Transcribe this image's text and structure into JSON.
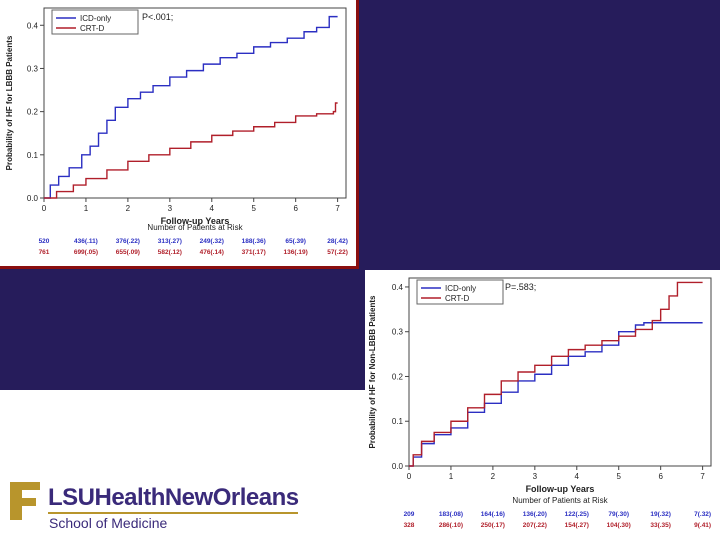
{
  "colors": {
    "icd": "#2b2fc2",
    "crt": "#b01f2a",
    "bg": "#261c5b",
    "gold": "#b8952c"
  },
  "chart_data": [
    {
      "type": "line",
      "title": "P<.001;",
      "xlabel": "Follow-up Years",
      "ylabel": "Probability of HF for LBBB Patients",
      "xlim": [
        0,
        7.2
      ],
      "ylim": [
        0,
        0.44
      ],
      "xticks": [
        "0",
        "1",
        "2",
        "3",
        "4",
        "5",
        "6",
        "7"
      ],
      "yticks": [
        "0.0",
        "0.1",
        "0.2",
        "0.3",
        "0.4"
      ],
      "legend": [
        "ICD-only",
        "CRT-D"
      ],
      "series": [
        {
          "name": "ICD-only",
          "x": [
            0,
            0.15,
            0.35,
            0.6,
            0.9,
            1.1,
            1.3,
            1.5,
            1.7,
            2.0,
            2.3,
            2.6,
            3.0,
            3.4,
            3.8,
            4.2,
            4.6,
            5.0,
            5.4,
            5.8,
            6.2,
            6.5,
            6.8,
            6.95,
            7.0
          ],
          "y": [
            0,
            0.03,
            0.05,
            0.07,
            0.1,
            0.12,
            0.15,
            0.18,
            0.21,
            0.23,
            0.245,
            0.26,
            0.28,
            0.295,
            0.31,
            0.325,
            0.335,
            0.35,
            0.36,
            0.37,
            0.385,
            0.395,
            0.42,
            0.42,
            0.42
          ]
        },
        {
          "name": "CRT-D",
          "x": [
            0,
            0.3,
            0.7,
            1.0,
            1.5,
            2.0,
            2.5,
            3.0,
            3.5,
            4.0,
            4.5,
            5.0,
            5.5,
            6.0,
            6.5,
            6.9,
            6.95,
            7.0
          ],
          "y": [
            0,
            0.015,
            0.03,
            0.045,
            0.065,
            0.085,
            0.1,
            0.115,
            0.13,
            0.145,
            0.155,
            0.165,
            0.175,
            0.19,
            0.195,
            0.2,
            0.22,
            0.22
          ]
        }
      ],
      "at_risk": {
        "title": "Number of Patients at Risk",
        "rows": [
          {
            "name": "ICD-only",
            "values": [
              "520",
              "436(.11)",
              "376(.22)",
              "313(.27)",
              "249(.32)",
              "188(.36)",
              "65(.39)",
              "28(.42)"
            ]
          },
          {
            "name": "CRT-D",
            "values": [
              "761",
              "699(.05)",
              "655(.09)",
              "582(.12)",
              "476(.14)",
              "371(.17)",
              "136(.19)",
              "57(.22)"
            ]
          }
        ]
      }
    },
    {
      "type": "line",
      "title": "P=.583;",
      "xlabel": "Follow-up Years",
      "ylabel": "Probability of HF for Non-LBBB Patients",
      "xlim": [
        0,
        7.2
      ],
      "ylim": [
        0,
        0.42
      ],
      "xticks": [
        "0",
        "1",
        "2",
        "3",
        "4",
        "5",
        "6",
        "7"
      ],
      "yticks": [
        "0.0",
        "0.1",
        "0.2",
        "0.3",
        "0.4"
      ],
      "legend": [
        "ICD-only",
        "CRT-D"
      ],
      "series": [
        {
          "name": "ICD-only",
          "x": [
            0,
            0.1,
            0.3,
            0.6,
            1.0,
            1.4,
            1.8,
            2.2,
            2.6,
            3.0,
            3.4,
            3.8,
            4.2,
            4.6,
            5.0,
            5.4,
            5.6,
            6.0,
            6.5,
            7.0
          ],
          "y": [
            0,
            0.02,
            0.05,
            0.07,
            0.085,
            0.12,
            0.14,
            0.165,
            0.19,
            0.205,
            0.225,
            0.245,
            0.255,
            0.27,
            0.3,
            0.315,
            0.32,
            0.32,
            0.32,
            0.32
          ]
        },
        {
          "name": "CRT-D",
          "x": [
            0,
            0.1,
            0.3,
            0.6,
            1.0,
            1.4,
            1.8,
            2.2,
            2.6,
            3.0,
            3.4,
            3.8,
            4.2,
            4.6,
            5.0,
            5.4,
            5.8,
            6.0,
            6.2,
            6.4,
            6.5,
            7.0
          ],
          "y": [
            0,
            0.025,
            0.055,
            0.075,
            0.1,
            0.13,
            0.16,
            0.19,
            0.21,
            0.225,
            0.245,
            0.26,
            0.27,
            0.28,
            0.29,
            0.305,
            0.325,
            0.35,
            0.38,
            0.41,
            0.41,
            0.41
          ]
        }
      ],
      "at_risk": {
        "title": "Number of Patients at Risk",
        "rows": [
          {
            "name": "ICD-only",
            "values": [
              "209",
              "183(.08)",
              "164(.16)",
              "136(.20)",
              "122(.25)",
              "79(.30)",
              "19(.32)",
              "7(.32)"
            ]
          },
          {
            "name": "CRT-D",
            "values": [
              "328",
              "286(.10)",
              "250(.17)",
              "207(.22)",
              "154(.27)",
              "104(.30)",
              "33(.35)",
              "9(.41)"
            ]
          }
        ]
      }
    }
  ],
  "logo": {
    "name": "LSUHealthNewOrleans",
    "sub": "School of Medicine"
  }
}
